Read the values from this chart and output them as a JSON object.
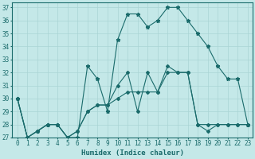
{
  "xlabel": "Humidex (Indice chaleur)",
  "bg_color": "#c4e8e8",
  "line_color": "#1a6b6b",
  "grid_color": "#aad4d4",
  "xlim": [
    -0.5,
    23.5
  ],
  "ylim": [
    27,
    37.4
  ],
  "yticks": [
    27,
    28,
    29,
    30,
    31,
    32,
    33,
    34,
    35,
    36,
    37
  ],
  "xticks": [
    0,
    1,
    2,
    3,
    4,
    5,
    6,
    7,
    8,
    9,
    10,
    11,
    12,
    13,
    14,
    15,
    16,
    17,
    18,
    19,
    20,
    21,
    22,
    23
  ],
  "series1_x": [
    0,
    1,
    2,
    3,
    4,
    5,
    6,
    7,
    8,
    9,
    10,
    11,
    12,
    13,
    14,
    15,
    16,
    17,
    18,
    19,
    20,
    21,
    22,
    23
  ],
  "series1_y": [
    30,
    27,
    27.5,
    28,
    28,
    27,
    27,
    32.5,
    31.5,
    29,
    34.5,
    36.5,
    36.5,
    35.5,
    36,
    37,
    37,
    36,
    35,
    34,
    32.5,
    31.5,
    31.5,
    28
  ],
  "series2_x": [
    0,
    1,
    2,
    3,
    4,
    5,
    6,
    7,
    8,
    9,
    10,
    11,
    12,
    13,
    14,
    15,
    16,
    17,
    18,
    19,
    20,
    21,
    22,
    23
  ],
  "series2_y": [
    30,
    27,
    27.5,
    28,
    28,
    27,
    27.5,
    29,
    29.5,
    29.5,
    31,
    32,
    29,
    32,
    30.5,
    32.5,
    32,
    32,
    28,
    27.5,
    28,
    28,
    28,
    28
  ],
  "series3_x": [
    0,
    1,
    2,
    3,
    4,
    5,
    6,
    7,
    8,
    9,
    10,
    11,
    12,
    13,
    14,
    15,
    16,
    17,
    18,
    19,
    20,
    21,
    22,
    23
  ],
  "series3_y": [
    30,
    27,
    27.5,
    28,
    28,
    27,
    27.5,
    29,
    29.5,
    29.5,
    30,
    30.5,
    30.5,
    30.5,
    30.5,
    32,
    32,
    32,
    28,
    28,
    28,
    28,
    28,
    28
  ]
}
